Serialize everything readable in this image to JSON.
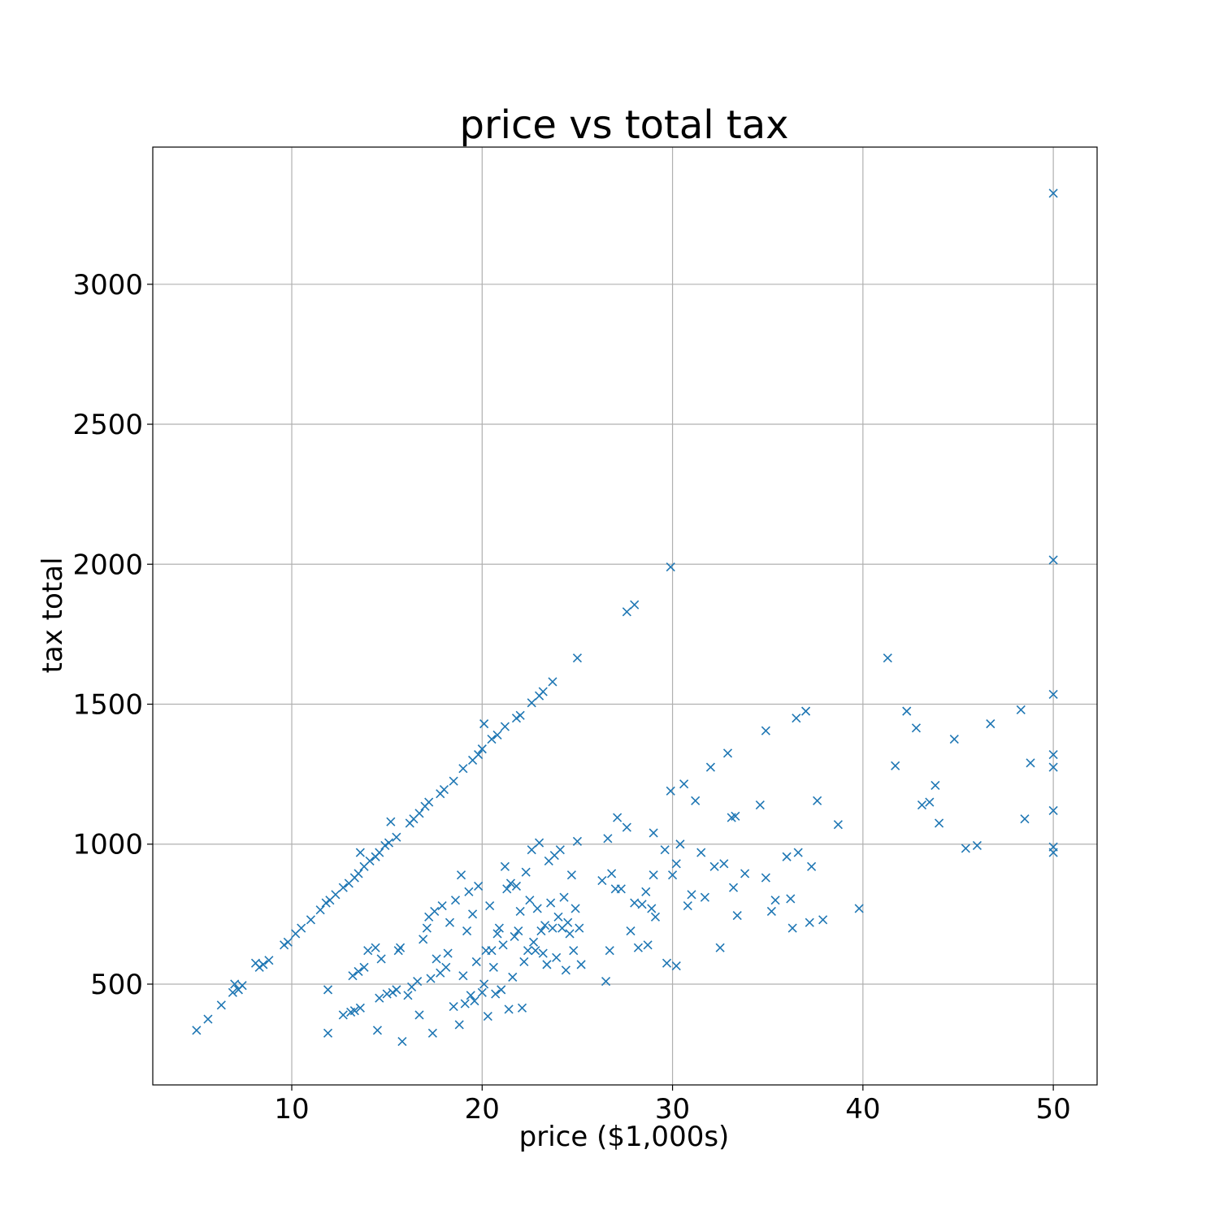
{
  "chart_data": {
    "type": "scatter",
    "title": "price vs total tax",
    "xlabel": "price ($1,000s)",
    "ylabel": "tax total",
    "xlim": [
      2.7,
      52.3
    ],
    "ylim": [
      140,
      3490
    ],
    "xticks": [
      10,
      20,
      30,
      40,
      50
    ],
    "yticks": [
      500,
      1000,
      1500,
      2000,
      2500,
      3000
    ],
    "grid": true,
    "marker": "x",
    "color": "#1f77b4",
    "points": [
      [
        5.0,
        335
      ],
      [
        5.6,
        375
      ],
      [
        6.3,
        425
      ],
      [
        6.9,
        470
      ],
      [
        7.0,
        500
      ],
      [
        7.2,
        480
      ],
      [
        7.4,
        495
      ],
      [
        8.1,
        575
      ],
      [
        8.3,
        560
      ],
      [
        8.5,
        570
      ],
      [
        8.8,
        585
      ],
      [
        9.6,
        640
      ],
      [
        9.8,
        650
      ],
      [
        10.2,
        680
      ],
      [
        10.5,
        700
      ],
      [
        11.0,
        730
      ],
      [
        11.5,
        765
      ],
      [
        11.8,
        790
      ],
      [
        12.0,
        800
      ],
      [
        12.3,
        820
      ],
      [
        12.7,
        845
      ],
      [
        13.0,
        860
      ],
      [
        13.3,
        880
      ],
      [
        13.5,
        895
      ],
      [
        13.8,
        920
      ],
      [
        14.1,
        940
      ],
      [
        14.4,
        955
      ],
      [
        14.6,
        970
      ],
      [
        14.9,
        995
      ],
      [
        15.1,
        1005
      ],
      [
        15.2,
        1080
      ],
      [
        15.5,
        1025
      ],
      [
        16.2,
        1075
      ],
      [
        16.4,
        1090
      ],
      [
        16.7,
        1110
      ],
      [
        17.0,
        1135
      ],
      [
        17.2,
        1150
      ],
      [
        17.8,
        1180
      ],
      [
        18.0,
        1195
      ],
      [
        18.5,
        1225
      ],
      [
        19.0,
        1270
      ],
      [
        19.5,
        1300
      ],
      [
        19.8,
        1320
      ],
      [
        20.0,
        1340
      ],
      [
        20.1,
        1430
      ],
      [
        20.5,
        1375
      ],
      [
        20.8,
        1390
      ],
      [
        21.2,
        1420
      ],
      [
        21.8,
        1450
      ],
      [
        22.0,
        1460
      ],
      [
        22.6,
        1505
      ],
      [
        23.0,
        1530
      ],
      [
        23.2,
        1545
      ],
      [
        23.7,
        1580
      ],
      [
        25.0,
        1665
      ],
      [
        27.6,
        1830
      ],
      [
        28.0,
        1855
      ],
      [
        29.9,
        1990
      ],
      [
        13.6,
        970
      ],
      [
        11.9,
        480
      ],
      [
        11.9,
        325
      ],
      [
        12.7,
        390
      ],
      [
        13.1,
        400
      ],
      [
        13.3,
        405
      ],
      [
        13.6,
        415
      ],
      [
        13.2,
        530
      ],
      [
        13.5,
        545
      ],
      [
        13.8,
        560
      ],
      [
        14.0,
        620
      ],
      [
        14.4,
        630
      ],
      [
        14.5,
        335
      ],
      [
        14.6,
        450
      ],
      [
        14.7,
        590
      ],
      [
        15.0,
        465
      ],
      [
        15.3,
        470
      ],
      [
        15.5,
        480
      ],
      [
        15.6,
        620
      ],
      [
        15.7,
        630
      ],
      [
        15.8,
        295
      ],
      [
        16.1,
        460
      ],
      [
        16.3,
        490
      ],
      [
        16.6,
        510
      ],
      [
        16.7,
        390
      ],
      [
        16.9,
        660
      ],
      [
        17.1,
        700
      ],
      [
        17.2,
        740
      ],
      [
        17.3,
        520
      ],
      [
        17.4,
        325
      ],
      [
        17.5,
        760
      ],
      [
        17.6,
        590
      ],
      [
        17.8,
        540
      ],
      [
        17.9,
        780
      ],
      [
        18.1,
        560
      ],
      [
        18.2,
        610
      ],
      [
        18.3,
        720
      ],
      [
        18.5,
        420
      ],
      [
        18.6,
        800
      ],
      [
        18.8,
        355
      ],
      [
        18.9,
        890
      ],
      [
        19.0,
        530
      ],
      [
        19.1,
        430
      ],
      [
        19.2,
        690
      ],
      [
        19.3,
        830
      ],
      [
        19.4,
        460
      ],
      [
        19.5,
        750
      ],
      [
        19.6,
        440
      ],
      [
        19.7,
        580
      ],
      [
        19.8,
        850
      ],
      [
        20.0,
        470
      ],
      [
        20.1,
        500
      ],
      [
        20.2,
        620
      ],
      [
        20.3,
        385
      ],
      [
        20.4,
        780
      ],
      [
        20.5,
        620
      ],
      [
        20.6,
        560
      ],
      [
        20.7,
        465
      ],
      [
        20.8,
        680
      ],
      [
        20.9,
        700
      ],
      [
        21.0,
        480
      ],
      [
        21.1,
        640
      ],
      [
        21.2,
        920
      ],
      [
        21.3,
        840
      ],
      [
        21.4,
        410
      ],
      [
        21.5,
        860
      ],
      [
        21.6,
        525
      ],
      [
        21.7,
        670
      ],
      [
        21.8,
        850
      ],
      [
        21.9,
        690
      ],
      [
        22.0,
        760
      ],
      [
        22.1,
        415
      ],
      [
        22.2,
        580
      ],
      [
        22.3,
        900
      ],
      [
        22.4,
        620
      ],
      [
        22.5,
        800
      ],
      [
        22.6,
        980
      ],
      [
        22.7,
        650
      ],
      [
        22.8,
        620
      ],
      [
        22.9,
        770
      ],
      [
        23.0,
        1005
      ],
      [
        23.1,
        690
      ],
      [
        23.2,
        610
      ],
      [
        23.3,
        710
      ],
      [
        23.4,
        570
      ],
      [
        23.5,
        940
      ],
      [
        23.6,
        790
      ],
      [
        23.7,
        700
      ],
      [
        23.8,
        960
      ],
      [
        23.9,
        595
      ],
      [
        24.0,
        740
      ],
      [
        24.1,
        980
      ],
      [
        24.2,
        700
      ],
      [
        24.3,
        810
      ],
      [
        24.4,
        550
      ],
      [
        24.5,
        720
      ],
      [
        24.6,
        680
      ],
      [
        24.7,
        890
      ],
      [
        24.8,
        620
      ],
      [
        24.9,
        770
      ],
      [
        25.0,
        1010
      ],
      [
        25.1,
        700
      ],
      [
        25.2,
        570
      ],
      [
        26.3,
        870
      ],
      [
        26.5,
        510
      ],
      [
        26.6,
        1020
      ],
      [
        26.7,
        620
      ],
      [
        26.8,
        895
      ],
      [
        27.0,
        840
      ],
      [
        27.1,
        1095
      ],
      [
        27.3,
        840
      ],
      [
        27.6,
        1060
      ],
      [
        27.8,
        690
      ],
      [
        28.0,
        790
      ],
      [
        28.2,
        630
      ],
      [
        28.4,
        785
      ],
      [
        28.6,
        830
      ],
      [
        28.7,
        640
      ],
      [
        28.9,
        770
      ],
      [
        29.0,
        890
      ],
      [
        29.1,
        740
      ],
      [
        29.0,
        1040
      ],
      [
        29.6,
        980
      ],
      [
        29.7,
        575
      ],
      [
        29.9,
        1190
      ],
      [
        30.0,
        890
      ],
      [
        30.2,
        565
      ],
      [
        30.2,
        930
      ],
      [
        30.4,
        1000
      ],
      [
        30.6,
        1215
      ],
      [
        30.8,
        780
      ],
      [
        31.0,
        820
      ],
      [
        31.2,
        1155
      ],
      [
        31.5,
        970
      ],
      [
        31.7,
        810
      ],
      [
        32.0,
        1275
      ],
      [
        32.2,
        920
      ],
      [
        32.5,
        630
      ],
      [
        32.7,
        930
      ],
      [
        32.9,
        1325
      ],
      [
        33.1,
        1095
      ],
      [
        33.2,
        845
      ],
      [
        33.3,
        1100
      ],
      [
        33.4,
        745
      ],
      [
        33.8,
        895
      ],
      [
        34.6,
        1140
      ],
      [
        34.9,
        1405
      ],
      [
        34.9,
        880
      ],
      [
        35.2,
        760
      ],
      [
        35.4,
        800
      ],
      [
        36.0,
        955
      ],
      [
        36.2,
        805
      ],
      [
        36.3,
        700
      ],
      [
        36.5,
        1450
      ],
      [
        36.6,
        970
      ],
      [
        37.0,
        1475
      ],
      [
        37.2,
        720
      ],
      [
        37.3,
        920
      ],
      [
        37.6,
        1155
      ],
      [
        37.9,
        730
      ],
      [
        38.7,
        1070
      ],
      [
        39.8,
        770
      ],
      [
        41.3,
        1665
      ],
      [
        41.7,
        1280
      ],
      [
        42.3,
        1475
      ],
      [
        42.8,
        1415
      ],
      [
        43.1,
        1140
      ],
      [
        43.5,
        1150
      ],
      [
        43.8,
        1210
      ],
      [
        44.0,
        1075
      ],
      [
        44.8,
        1375
      ],
      [
        45.4,
        985
      ],
      [
        46.0,
        995
      ],
      [
        46.7,
        1430
      ],
      [
        48.3,
        1480
      ],
      [
        48.5,
        1090
      ],
      [
        48.8,
        1290
      ],
      [
        50.0,
        3325
      ],
      [
        50.0,
        2015
      ],
      [
        50.0,
        1535
      ],
      [
        50.0,
        1320
      ],
      [
        50.0,
        1275
      ],
      [
        50.0,
        1120
      ],
      [
        50.0,
        990
      ],
      [
        50.0,
        970
      ]
    ]
  }
}
